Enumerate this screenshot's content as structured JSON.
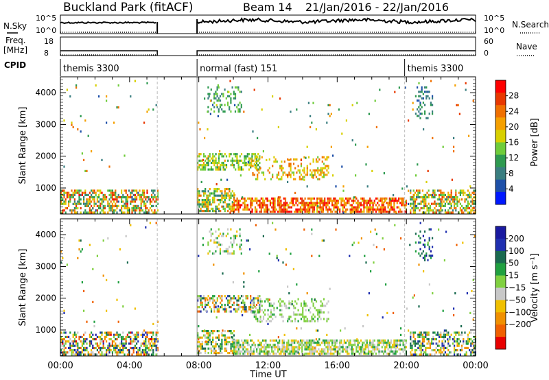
{
  "header": {
    "title": "Buckland Park (fitACF)",
    "beam": "Beam 14",
    "date_range": "21/Jan/2016 - 22/Jan/2016"
  },
  "top_panels": {
    "nsky_label": "N.Sky",
    "nsearch_label": "N.Search",
    "noise_ticks": [
      "10^5",
      "10^0"
    ],
    "freq_label": "Freq.",
    "freq_unit": "[MHz]",
    "freq_ticks": [
      "18",
      "8"
    ],
    "nave_label": "Nave",
    "nave_ticks": [
      "60",
      "0"
    ],
    "cpid_label": "CPID",
    "modes": [
      {
        "name": "themis 3300",
        "start_hour": 0.0,
        "end_hour": 5.6
      },
      {
        "name": "normal (fast) 151",
        "start_hour": 7.9,
        "end_hour": 19.9
      },
      {
        "name": "themis 3300",
        "start_hour": 19.9,
        "end_hour": 24.0
      }
    ]
  },
  "colors": {
    "power_scale": [
      "#0018ff",
      "#1e50a8",
      "#3a7e80",
      "#2e9a50",
      "#6fcc3a",
      "#d8d000",
      "#f5a000",
      "#f07000",
      "#e83800",
      "#ff0000"
    ],
    "velocity_scale": [
      "#1a1aa0",
      "#2030b0",
      "#1a6a50",
      "#20a040",
      "#80d040",
      "#c8c8c8",
      "#f0c000",
      "#f09000",
      "#f06000",
      "#e80000"
    ]
  },
  "chart_data": [
    {
      "type": "heatmap",
      "name": "power",
      "xlabel": "",
      "ylabel": "Slant Range [km]",
      "xlim": [
        0,
        24
      ],
      "ylim": [
        180,
        4500
      ],
      "yticks": [
        1000,
        2000,
        3000,
        4000
      ],
      "colorbar": {
        "label": "Power [dB]",
        "ticks": [
          4,
          8,
          12,
          16,
          20,
          24,
          28
        ],
        "range": [
          0,
          32
        ]
      },
      "data_gap_hours": [
        5.6,
        7.9
      ],
      "regions": [
        {
          "x": [
            0.0,
            5.6
          ],
          "y": [
            250,
            950
          ],
          "min": 6,
          "max": 30,
          "density": 0.55
        },
        {
          "x": [
            7.9,
            10.0
          ],
          "y": [
            250,
            1000
          ],
          "min": 8,
          "max": 24,
          "density": 0.55
        },
        {
          "x": [
            7.9,
            11.5
          ],
          "y": [
            1600,
            2100
          ],
          "min": 10,
          "max": 20,
          "density": 0.5
        },
        {
          "x": [
            11.0,
            15.5
          ],
          "y": [
            1300,
            2000
          ],
          "min": 14,
          "max": 24,
          "density": 0.3
        },
        {
          "x": [
            8.5,
            10.5
          ],
          "y": [
            3400,
            4200
          ],
          "min": 6,
          "max": 16,
          "density": 0.3
        },
        {
          "x": [
            10.0,
            20.0
          ],
          "y": [
            220,
            700
          ],
          "min": 18,
          "max": 32,
          "density": 0.65
        },
        {
          "x": [
            20.2,
            24.0
          ],
          "y": [
            250,
            950
          ],
          "min": 8,
          "max": 28,
          "density": 0.55
        },
        {
          "x": [
            20.5,
            21.5
          ],
          "y": [
            3200,
            4200
          ],
          "min": 4,
          "max": 12,
          "density": 0.25
        },
        {
          "x": [
            0.0,
            24.0
          ],
          "y": [
            250,
            4400
          ],
          "min": 4,
          "max": 28,
          "density": 0.012
        }
      ]
    },
    {
      "type": "heatmap",
      "name": "velocity",
      "xlabel": "Time UT",
      "ylabel": "Slant Range [km]",
      "xlim": [
        0,
        24
      ],
      "ylim": [
        180,
        4500
      ],
      "xticks": [
        "00:00",
        "04:00",
        "08:00",
        "12:00",
        "16:00",
        "20:00",
        "00:00"
      ],
      "yticks": [
        1000,
        2000,
        3000,
        4000
      ],
      "colorbar": {
        "label": "Velocity [m s⁻¹]",
        "ticks": [
          200,
          100,
          50,
          15,
          -15,
          -50,
          -100,
          -200
        ],
        "range": [
          -250,
          250
        ]
      },
      "data_gap_hours": [
        5.6,
        7.9
      ],
      "regions": [
        {
          "x": [
            0.0,
            5.6
          ],
          "y": [
            250,
            950
          ],
          "min": -220,
          "max": 220,
          "density": 0.55
        },
        {
          "x": [
            7.9,
            10.0
          ],
          "y": [
            250,
            1000
          ],
          "min": -150,
          "max": 150,
          "density": 0.55
        },
        {
          "x": [
            7.9,
            11.5
          ],
          "y": [
            1600,
            2100
          ],
          "min": -200,
          "max": 200,
          "density": 0.5
        },
        {
          "x": [
            11.0,
            15.5
          ],
          "y": [
            1300,
            2000
          ],
          "min": -30,
          "max": 60,
          "density": 0.3
        },
        {
          "x": [
            8.5,
            10.5
          ],
          "y": [
            3400,
            4200
          ],
          "min": -100,
          "max": 100,
          "density": 0.3
        },
        {
          "x": [
            10.0,
            20.0
          ],
          "y": [
            220,
            700
          ],
          "min": -80,
          "max": 80,
          "density": 0.65
        },
        {
          "x": [
            20.2,
            24.0
          ],
          "y": [
            250,
            950
          ],
          "min": -150,
          "max": 200,
          "density": 0.55
        },
        {
          "x": [
            20.5,
            21.5
          ],
          "y": [
            3200,
            4200
          ],
          "min": 50,
          "max": 220,
          "density": 0.25
        },
        {
          "x": [
            0.0,
            24.0
          ],
          "y": [
            250,
            4400
          ],
          "min": -200,
          "max": 200,
          "density": 0.012
        }
      ]
    }
  ]
}
